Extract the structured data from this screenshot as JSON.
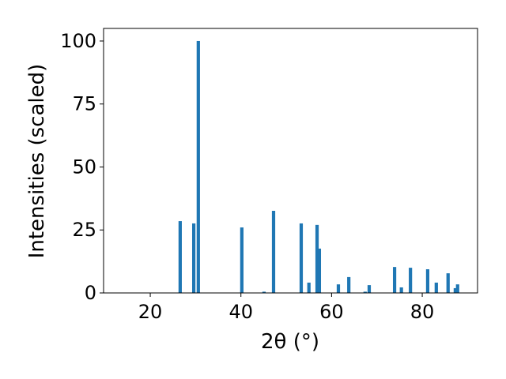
{
  "chart_data": {
    "type": "bar",
    "xlabel": "2θ (°)",
    "ylabel": "Intensities (scaled)",
    "x": [
      26.6,
      29.6,
      30.6,
      40.2,
      45.1,
      47.2,
      53.3,
      55.0,
      56.8,
      57.3,
      61.5,
      63.8,
      67.4,
      68.3,
      73.9,
      75.4,
      77.4,
      81.2,
      83.1,
      85.7,
      87.3,
      87.8
    ],
    "values": [
      28.5,
      27.6,
      100,
      26,
      0.5,
      32.6,
      27.6,
      4.1,
      27,
      17.6,
      3.4,
      6.3,
      0.5,
      3.1,
      10.3,
      2.2,
      10,
      9.4,
      4.1,
      7.8,
      1.9,
      3.4
    ],
    "color": "#1f77b4",
    "xlim": [
      9.7,
      92.2
    ],
    "xticks": [
      20,
      40,
      60,
      80
    ],
    "ylim": [
      0,
      105
    ],
    "yticks": [
      0,
      25,
      50,
      75,
      100
    ]
  }
}
